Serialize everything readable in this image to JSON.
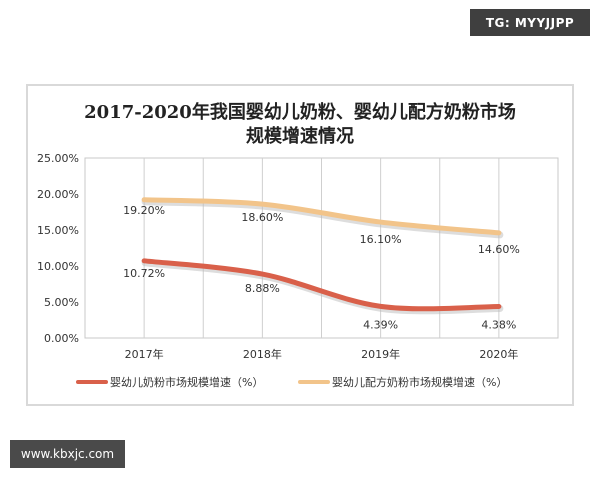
{
  "watermarks": {
    "top_right": "TG: MYYJJPP",
    "bottom_left": "www.kbxjc.com"
  },
  "chart_data": {
    "type": "line",
    "title_lines": [
      "2017-2020年我国婴幼儿奶粉、婴幼儿配方奶粉市场",
      "规模增速情况"
    ],
    "categories": [
      "2017年",
      "2018年",
      "2019年",
      "2020年"
    ],
    "yticks": [
      "0.00%",
      "5.00%",
      "10.00%",
      "15.00%",
      "20.00%",
      "25.00%"
    ],
    "ylim": [
      0,
      25
    ],
    "grid": "vertical",
    "legend_placement": "bottom",
    "series": [
      {
        "name": "婴幼儿奶粉市场规模增速（%）",
        "values": [
          10.72,
          8.88,
          4.39,
          4.38
        ],
        "labels": [
          "10.72%",
          "8.88%",
          "4.39%",
          "4.38%"
        ],
        "color": "#d9604a"
      },
      {
        "name": "婴幼儿配方奶粉市场规模增速（%）",
        "values": [
          19.2,
          18.6,
          16.1,
          14.6
        ],
        "labels": [
          "19.20%",
          "18.60%",
          "16.10%",
          "14.60%"
        ],
        "color": "#f2c48a"
      }
    ]
  }
}
